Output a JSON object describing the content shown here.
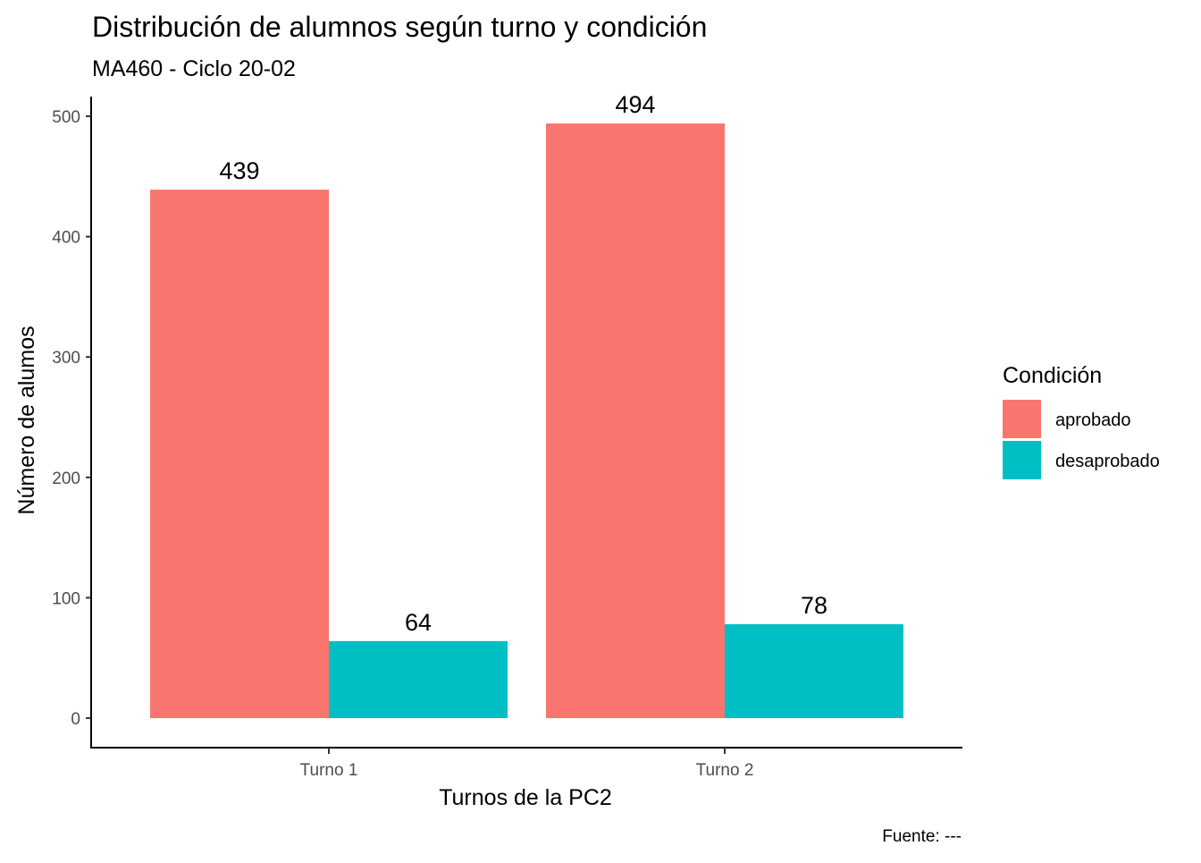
{
  "chart_data": {
    "type": "bar",
    "title": "Distribución de alumnos según turno y condición",
    "subtitle": "MA460 - Ciclo 20-02",
    "xlabel": "Turnos de la PC2",
    "ylabel": "Número de alumos",
    "caption": "Fuente: ---",
    "categories": [
      "Turno 1",
      "Turno 2"
    ],
    "series": [
      {
        "name": "aprobado",
        "color": "#F8766D",
        "values": [
          439,
          494
        ]
      },
      {
        "name": "desaprobado",
        "color": "#00BFC4",
        "values": [
          64,
          78
        ]
      }
    ],
    "ylim": [
      0,
      500
    ],
    "yticks": [
      0,
      100,
      200,
      300,
      400,
      500
    ],
    "grid": false,
    "legend": {
      "title": "Condición",
      "position": "right"
    }
  }
}
